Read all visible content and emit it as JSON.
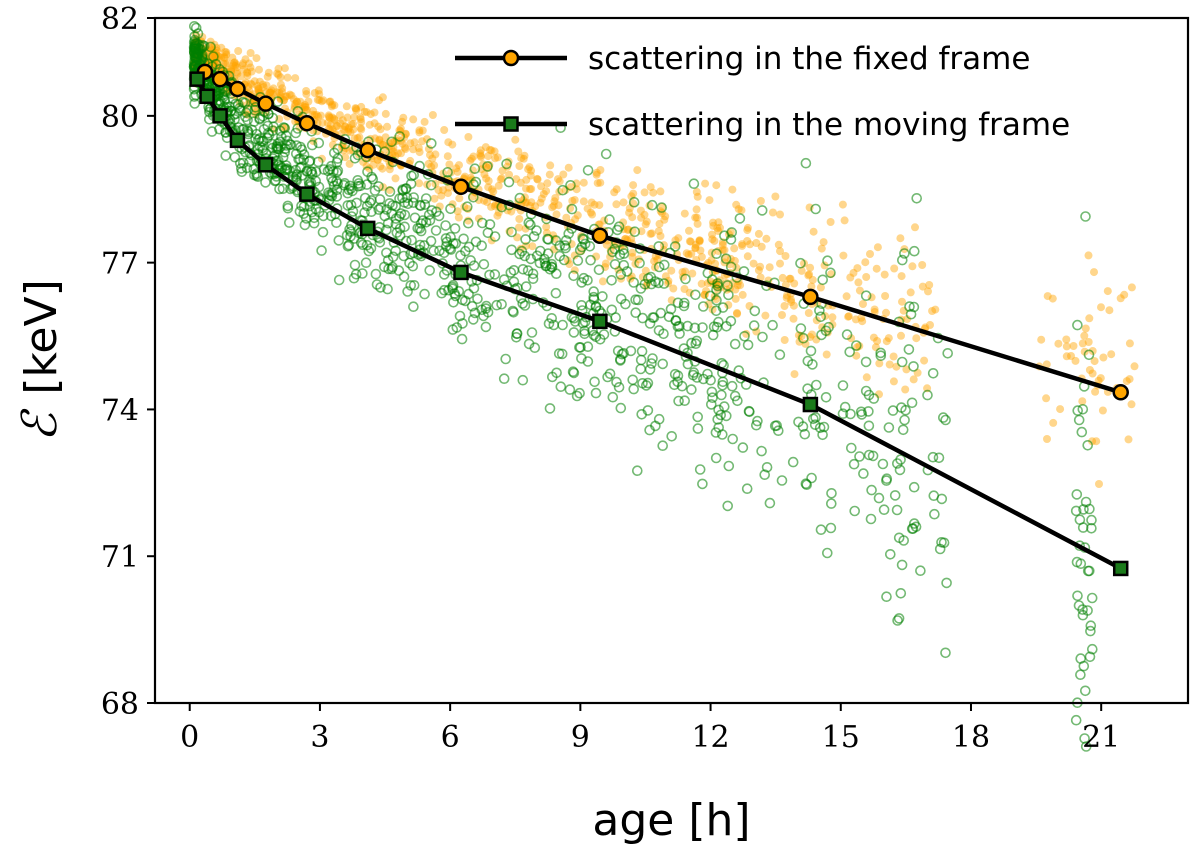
{
  "chart_data": {
    "type": "scatter",
    "xlabel": "age [h]",
    "ylabel": "[keV]",
    "ylabel_symbol": "ℰ",
    "xlim": [
      -0.8,
      23
    ],
    "ylim": [
      68,
      82
    ],
    "xticks": [
      0,
      3,
      6,
      9,
      12,
      15,
      18,
      21
    ],
    "yticks": [
      68,
      71,
      74,
      77,
      80,
      82
    ],
    "legend_position": "top-right",
    "series": [
      {
        "name": "scattering in the fixed frame",
        "color": "#ffa500",
        "marker": "circle",
        "x": [
          0.35,
          0.7,
          1.1,
          1.75,
          2.7,
          4.1,
          6.25,
          9.45,
          14.3,
          21.45
        ],
        "y": [
          80.9,
          80.75,
          80.55,
          80.25,
          79.85,
          79.3,
          78.55,
          77.55,
          76.3,
          74.35
        ]
      },
      {
        "name": "scattering in the moving frame",
        "color": "#1a7a1a",
        "marker": "square",
        "x": [
          0.17,
          0.4,
          0.7,
          1.1,
          1.75,
          2.7,
          4.1,
          6.25,
          9.45,
          14.3,
          21.45
        ],
        "y": [
          80.75,
          80.4,
          80.0,
          79.5,
          79.0,
          78.4,
          77.7,
          76.8,
          75.8,
          74.1,
          70.75
        ]
      }
    ],
    "cloud_colors": {
      "fixed": "#ffa500",
      "moving": "#008000"
    }
  }
}
